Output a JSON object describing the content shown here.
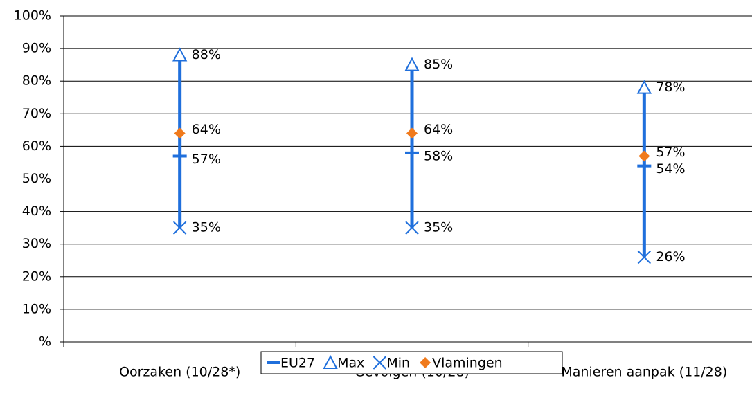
{
  "chart_data": {
    "type": "highlow",
    "categories": [
      "Oorzaken (10/28*)",
      "Gevolgen (10/28)",
      "Manieren aanpak (11/28)"
    ],
    "series": [
      {
        "name": "EU27",
        "color": "#1f6fdc",
        "marker": "dash",
        "values": [
          57,
          58,
          54
        ],
        "value_labels": [
          "57%",
          "58%",
          "54%"
        ]
      },
      {
        "name": "Max",
        "color": "#1f6fdc",
        "marker": "triangle",
        "values": [
          88,
          85,
          78
        ],
        "value_labels": [
          "88%",
          "85%",
          "78%"
        ]
      },
      {
        "name": "Min",
        "color": "#1f6fdc",
        "marker": "x",
        "values": [
          35,
          35,
          26
        ],
        "value_labels": [
          "35%",
          "35%",
          "26%"
        ]
      },
      {
        "name": "Vlamingen",
        "color": "#f07a1c",
        "marker": "diamond",
        "values": [
          64,
          64,
          57
        ],
        "value_labels": [
          "64%",
          "64%",
          "57%"
        ]
      }
    ],
    "ylim": [
      0,
      100
    ],
    "yticks": [
      {
        "value": 0,
        "label": "%"
      },
      {
        "value": 10,
        "label": "10%"
      },
      {
        "value": 20,
        "label": "20%"
      },
      {
        "value": 30,
        "label": "30%"
      },
      {
        "value": 40,
        "label": "40%"
      },
      {
        "value": 50,
        "label": "50%"
      },
      {
        "value": 60,
        "label": "60%"
      },
      {
        "value": 70,
        "label": "70%"
      },
      {
        "value": 80,
        "label": "80%"
      },
      {
        "value": 90,
        "label": "90%"
      },
      {
        "value": 100,
        "label": "100%"
      }
    ],
    "grid": true,
    "legend": "bottom"
  }
}
